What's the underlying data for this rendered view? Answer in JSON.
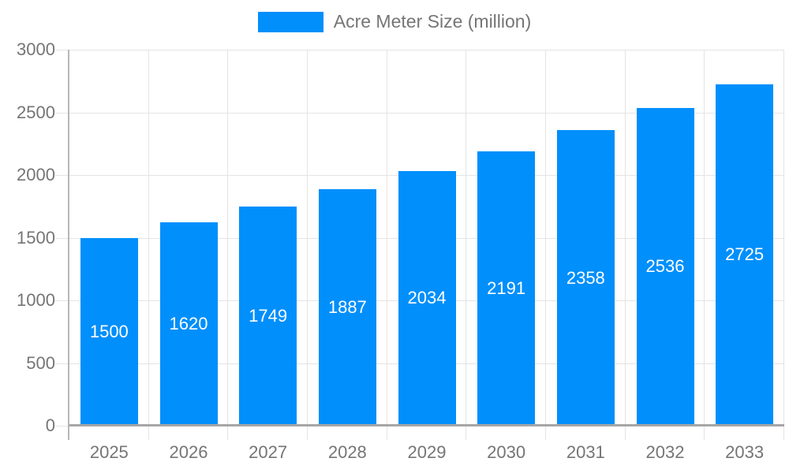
{
  "chart_data": {
    "type": "bar",
    "title": "Acre Meter Size (million)",
    "categories": [
      "2025",
      "2026",
      "2027",
      "2028",
      "2029",
      "2030",
      "2031",
      "2032",
      "2033"
    ],
    "series": [
      {
        "name": "Acre Meter Size (million)",
        "values": [
          1500,
          1620,
          1749,
          1887,
          2034,
          2191,
          2358,
          2536,
          2725
        ]
      }
    ],
    "value_labels_shown": true,
    "value_label_position": "inside-center",
    "xlabel": "",
    "ylabel": "",
    "ylim": [
      0,
      3000
    ],
    "yticks": [
      0,
      500,
      1000,
      1500,
      2000,
      2500,
      3000
    ],
    "grid": true,
    "legend_position": "top-center",
    "colors": {
      "bar": "#008FFB",
      "value_label": "#ffffff",
      "axis_text": "#757575",
      "gridline": "#e4e4e4",
      "y_axis_line": "#b7b7b7",
      "baseline": "#a6a6a6",
      "background": "#ffffff"
    }
  },
  "legend": {
    "label": "Acre Meter Size (million)"
  }
}
